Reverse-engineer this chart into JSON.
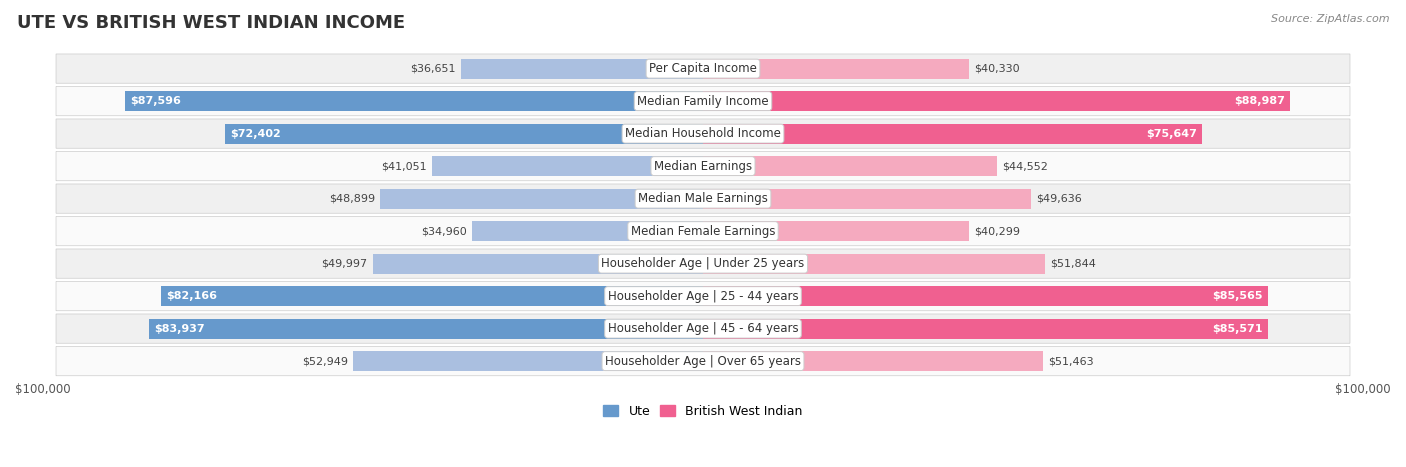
{
  "title": "Ute vs British West Indian Income",
  "source": "Source: ZipAtlas.com",
  "categories": [
    "Per Capita Income",
    "Median Family Income",
    "Median Household Income",
    "Median Earnings",
    "Median Male Earnings",
    "Median Female Earnings",
    "Householder Age | Under 25 years",
    "Householder Age | 25 - 44 years",
    "Householder Age | 45 - 64 years",
    "Householder Age | Over 65 years"
  ],
  "ute_values": [
    36651,
    87596,
    72402,
    41051,
    48899,
    34960,
    49997,
    82166,
    83937,
    52949
  ],
  "bwi_values": [
    40330,
    88987,
    75647,
    44552,
    49636,
    40299,
    51844,
    85565,
    85571,
    51463
  ],
  "max_val": 100000,
  "ute_color_dark": "#6699CC",
  "ute_color_light": "#AABFE0",
  "bwi_color_dark": "#F06090",
  "bwi_color_light": "#F5AABF",
  "ute_label": "Ute",
  "bwi_label": "British West Indian",
  "bg_color": "#ffffff",
  "row_bg_odd": "#f0f0f0",
  "row_bg_even": "#fafafa",
  "title_fontsize": 13,
  "source_fontsize": 8,
  "label_fontsize": 8.5,
  "value_fontsize": 8.0,
  "threshold_dark": 60000,
  "title_color": "#333333",
  "row_separator_color": "#dddddd"
}
